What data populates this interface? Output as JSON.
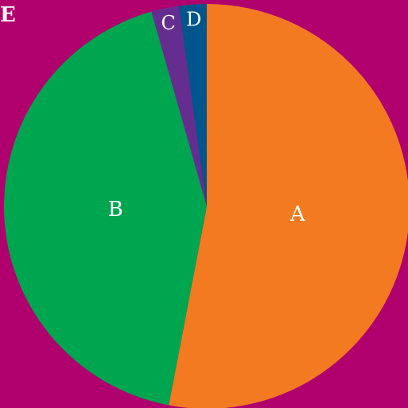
{
  "chart_data": {
    "type": "pie",
    "title": "E",
    "background_color": "#b0006e",
    "slices": [
      {
        "label": "A",
        "value": 53.0,
        "color": "#f47a22"
      },
      {
        "label": "B",
        "value": 42.6,
        "color": "#00a550"
      },
      {
        "label": "C",
        "value": 2.2,
        "color": "#662d91"
      },
      {
        "label": "D",
        "value": 2.2,
        "color": "#00558c"
      }
    ]
  }
}
